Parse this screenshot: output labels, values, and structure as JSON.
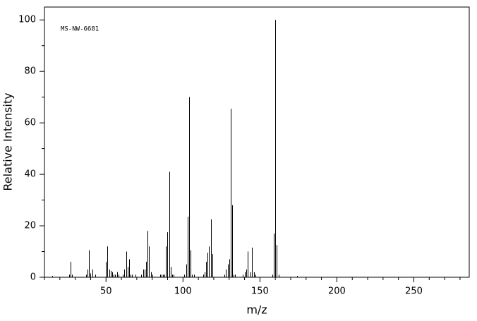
{
  "chart_data": {
    "type": "stem",
    "annotation": "MS-NW-6681",
    "x_label": "m/z",
    "y_label": "Relative Intensity",
    "color": "#000000",
    "x": [
      15,
      26,
      27,
      28,
      37,
      38,
      39,
      40,
      41,
      43,
      50,
      51,
      52,
      53,
      54,
      55,
      56,
      57,
      58,
      61,
      62,
      63,
      64,
      65,
      66,
      67,
      69,
      73,
      74,
      75,
      76,
      77,
      78,
      79,
      80,
      85,
      86,
      87,
      88,
      89,
      90,
      91,
      92,
      93,
      94,
      101,
      102,
      103,
      104,
      105,
      106,
      107,
      113,
      114,
      115,
      116,
      117,
      118,
      119,
      127,
      128,
      129,
      130,
      131,
      132,
      133,
      134,
      139,
      140,
      141,
      142,
      144,
      145,
      146,
      147,
      158,
      159,
      160,
      161,
      162,
      174
    ],
    "values": [
      0.5,
      1,
      6,
      1,
      1,
      3,
      10.5,
      1.5,
      3,
      1,
      6,
      12,
      3,
      2.5,
      2,
      1,
      1,
      2,
      1,
      1,
      3,
      10,
      4,
      7,
      1,
      1,
      1,
      1,
      3,
      3,
      6,
      18,
      12,
      2,
      1,
      1,
      1,
      1,
      1,
      12,
      17.5,
      41,
      4,
      1,
      1,
      1,
      5,
      23.5,
      70,
      10.5,
      1,
      1,
      1,
      2,
      6,
      9.5,
      12,
      22.5,
      9,
      1,
      3,
      5,
      7,
      65.5,
      28,
      1,
      1,
      1,
      2,
      3,
      10,
      2,
      11.5,
      2,
      1,
      1,
      17,
      100,
      12.5,
      1,
      0.5
    ],
    "xlim": [
      10,
      286
    ],
    "ylim": [
      0,
      105
    ],
    "xticks": [
      50,
      100,
      150,
      200,
      250
    ],
    "yticks": [
      0,
      20,
      40,
      60,
      80,
      100
    ],
    "xminorticks": [
      10,
      20,
      30,
      40,
      60,
      70,
      80,
      90,
      110,
      120,
      130,
      140,
      160,
      170,
      180,
      190,
      210,
      220,
      230,
      240,
      260,
      270,
      280
    ],
    "yminorticks": [
      10,
      30,
      50,
      70,
      90
    ]
  }
}
